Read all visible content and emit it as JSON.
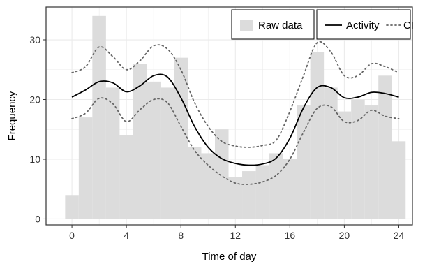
{
  "chart_data": {
    "type": "bar",
    "xlabel": "Time of day",
    "ylabel": "Frequency",
    "xlim": [
      -1.9,
      25.0
    ],
    "ylim": [
      -1.0,
      35.5
    ],
    "x_ticks": [
      0,
      4,
      8,
      12,
      16,
      20,
      24
    ],
    "y_ticks": [
      0,
      10,
      20,
      30
    ],
    "histogram": {
      "name": "Raw data",
      "bin_width": 1,
      "bin_centers": [
        0,
        1,
        2,
        3,
        4,
        5,
        6,
        7,
        8,
        9,
        10,
        11,
        12,
        13,
        14,
        15,
        16,
        17,
        18,
        19,
        20,
        21,
        22,
        23,
        24
      ],
      "values": [
        4,
        17,
        34,
        22,
        14,
        26,
        23,
        22,
        27,
        12,
        11,
        15,
        7,
        8,
        9,
        11,
        10,
        19,
        28,
        22,
        18,
        20,
        19,
        24,
        13
      ]
    },
    "series": [
      {
        "name": "Activity",
        "style": "solid",
        "x": [
          0,
          1,
          2,
          3,
          4,
          5,
          6,
          7,
          8,
          9,
          10,
          11,
          12,
          13,
          14,
          15,
          16,
          17,
          18,
          19,
          20,
          21,
          22,
          23,
          24
        ],
        "y": [
          20.4,
          21.6,
          23.0,
          22.8,
          21.3,
          22.3,
          24.0,
          23.8,
          20.3,
          15.5,
          12.0,
          10.1,
          9.3,
          9.0,
          9.2,
          10.2,
          13.5,
          18.6,
          22.0,
          22.0,
          20.3,
          20.4,
          21.2,
          21.0,
          20.4
        ]
      },
      {
        "name": "CI",
        "style": "dotted",
        "bands": [
          {
            "x": [
              0,
              1,
              2,
              3,
              4,
              5,
              6,
              7,
              8,
              9,
              10,
              11,
              12,
              13,
              14,
              15,
              16,
              17,
              18,
              19,
              20,
              21,
              22,
              23,
              24
            ],
            "y": [
              24.5,
              25.5,
              28.8,
              27.2,
              25.0,
              26.5,
              29.0,
              28.5,
              25.0,
              19.5,
              15.5,
              13.0,
              12.2,
              12.0,
              12.3,
              13.2,
              18.0,
              24.0,
              29.5,
              28.0,
              24.0,
              24.0,
              26.0,
              25.5,
              24.5
            ]
          },
          {
            "x": [
              0,
              1,
              2,
              3,
              4,
              5,
              6,
              7,
              8,
              9,
              10,
              11,
              12,
              13,
              14,
              15,
              16,
              17,
              18,
              19,
              20,
              21,
              22,
              23,
              24
            ],
            "y": [
              16.8,
              17.7,
              20.2,
              19.3,
              16.3,
              18.3,
              20.0,
              19.5,
              15.5,
              11.5,
              9.0,
              7.2,
              6.0,
              5.8,
              6.2,
              7.3,
              10.0,
              14.5,
              18.5,
              18.8,
              16.3,
              16.5,
              18.2,
              17.2,
              16.8
            ]
          }
        ]
      }
    ],
    "legend": {
      "placement": "top-right",
      "boxes": [
        {
          "label": "Raw data"
        },
        {
          "label": "Activity"
        },
        {
          "label": "CI"
        }
      ]
    },
    "grid": true,
    "colors": {
      "bars": "#dcdcdc",
      "activity": "#000000",
      "ci": "#666666",
      "grid": "#ebebeb",
      "panel_border": "#333333"
    }
  }
}
